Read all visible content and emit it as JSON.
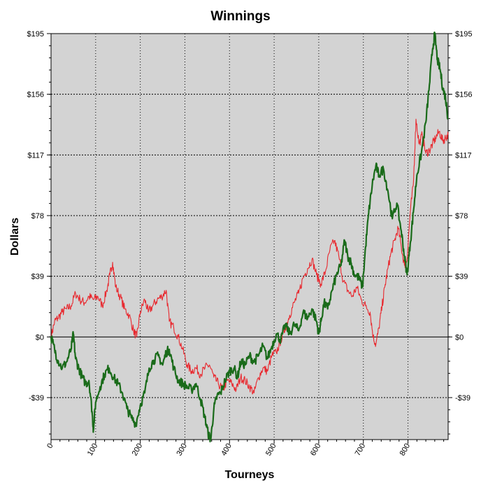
{
  "chart_data": {
    "type": "line",
    "title": "Winnings",
    "xlabel": "Tourneys",
    "ylabel": "Dollars",
    "xlim": [
      0,
      890
    ],
    "ylim": [
      -66,
      195
    ],
    "x_ticks": [
      0,
      100,
      200,
      300,
      400,
      500,
      600,
      700,
      800
    ],
    "x_tick_labels": [
      "0",
      "100",
      "200",
      "300",
      "400",
      "500",
      "600",
      "700",
      "800"
    ],
    "y_ticks": [
      -39,
      0,
      39,
      78,
      117,
      156,
      195
    ],
    "y_tick_labels": [
      "-$39",
      "$0",
      "$39",
      "$78",
      "$117",
      "$156",
      "$195"
    ],
    "grid": true,
    "legend": "none",
    "background_color": "#d3d3d3",
    "series": [
      {
        "color": "#1a6b1a",
        "points": [
          [
            0,
            0
          ],
          [
            8,
            -8
          ],
          [
            15,
            -15
          ],
          [
            25,
            -20
          ],
          [
            35,
            -16
          ],
          [
            45,
            -8
          ],
          [
            50,
            2
          ],
          [
            55,
            -14
          ],
          [
            62,
            -20
          ],
          [
            70,
            -26
          ],
          [
            78,
            -30
          ],
          [
            85,
            -28
          ],
          [
            92,
            -48
          ],
          [
            95,
            -60
          ],
          [
            100,
            -42
          ],
          [
            110,
            -32
          ],
          [
            120,
            -24
          ],
          [
            130,
            -20
          ],
          [
            140,
            -26
          ],
          [
            150,
            -30
          ],
          [
            160,
            -36
          ],
          [
            170,
            -46
          ],
          [
            180,
            -52
          ],
          [
            190,
            -56
          ],
          [
            200,
            -44
          ],
          [
            210,
            -36
          ],
          [
            220,
            -20
          ],
          [
            230,
            -15
          ],
          [
            240,
            -12
          ],
          [
            250,
            -18
          ],
          [
            258,
            -10
          ],
          [
            265,
            -8
          ],
          [
            275,
            -20
          ],
          [
            285,
            -28
          ],
          [
            295,
            -30
          ],
          [
            305,
            -32
          ],
          [
            315,
            -34
          ],
          [
            325,
            -30
          ],
          [
            335,
            -40
          ],
          [
            345,
            -52
          ],
          [
            352,
            -62
          ],
          [
            358,
            -66
          ],
          [
            365,
            -46
          ],
          [
            372,
            -38
          ],
          [
            380,
            -36
          ],
          [
            390,
            -28
          ],
          [
            400,
            -22
          ],
          [
            410,
            -20
          ],
          [
            418,
            -26
          ],
          [
            425,
            -16
          ],
          [
            435,
            -18
          ],
          [
            445,
            -12
          ],
          [
            455,
            -16
          ],
          [
            465,
            -12
          ],
          [
            475,
            -6
          ],
          [
            485,
            -14
          ],
          [
            495,
            -6
          ],
          [
            505,
            2
          ],
          [
            515,
            -2
          ],
          [
            525,
            8
          ],
          [
            535,
            2
          ],
          [
            545,
            8
          ],
          [
            555,
            4
          ],
          [
            565,
            16
          ],
          [
            575,
            12
          ],
          [
            585,
            18
          ],
          [
            595,
            10
          ],
          [
            600,
            2
          ],
          [
            605,
            10
          ],
          [
            612,
            22
          ],
          [
            620,
            18
          ],
          [
            630,
            30
          ],
          [
            640,
            40
          ],
          [
            650,
            46
          ],
          [
            658,
            62
          ],
          [
            665,
            52
          ],
          [
            672,
            48
          ],
          [
            680,
            40
          ],
          [
            690,
            38
          ],
          [
            698,
            32
          ],
          [
            705,
            58
          ],
          [
            712,
            80
          ],
          [
            720,
            98
          ],
          [
            728,
            110
          ],
          [
            735,
            104
          ],
          [
            745,
            108
          ],
          [
            755,
            94
          ],
          [
            765,
            76
          ],
          [
            775,
            86
          ],
          [
            785,
            68
          ],
          [
            792,
            52
          ],
          [
            798,
            40
          ],
          [
            805,
            60
          ],
          [
            812,
            80
          ],
          [
            820,
            104
          ],
          [
            830,
            118
          ],
          [
            840,
            138
          ],
          [
            848,
            162
          ],
          [
            855,
            185
          ],
          [
            860,
            195
          ],
          [
            866,
            178
          ],
          [
            872,
            172
          ],
          [
            878,
            160
          ],
          [
            884,
            154
          ],
          [
            890,
            140
          ]
        ]
      },
      {
        "color": "#e8282e",
        "points": [
          [
            0,
            0
          ],
          [
            8,
            10
          ],
          [
            15,
            12
          ],
          [
            25,
            16
          ],
          [
            35,
            18
          ],
          [
            45,
            20
          ],
          [
            55,
            28
          ],
          [
            65,
            24
          ],
          [
            75,
            22
          ],
          [
            85,
            26
          ],
          [
            95,
            24
          ],
          [
            105,
            26
          ],
          [
            115,
            20
          ],
          [
            125,
            30
          ],
          [
            132,
            40
          ],
          [
            138,
            48
          ],
          [
            145,
            32
          ],
          [
            155,
            26
          ],
          [
            165,
            18
          ],
          [
            175,
            14
          ],
          [
            185,
            4
          ],
          [
            192,
            0
          ],
          [
            200,
            16
          ],
          [
            210,
            24
          ],
          [
            218,
            16
          ],
          [
            228,
            20
          ],
          [
            238,
            24
          ],
          [
            248,
            26
          ],
          [
            258,
            30
          ],
          [
            265,
            10
          ],
          [
            275,
            6
          ],
          [
            285,
            0
          ],
          [
            295,
            -8
          ],
          [
            305,
            -18
          ],
          [
            315,
            -22
          ],
          [
            325,
            -20
          ],
          [
            335,
            -24
          ],
          [
            345,
            -20
          ],
          [
            355,
            -18
          ],
          [
            365,
            -26
          ],
          [
            375,
            -30
          ],
          [
            385,
            -34
          ],
          [
            395,
            -28
          ],
          [
            405,
            -30
          ],
          [
            415,
            -34
          ],
          [
            425,
            -26
          ],
          [
            435,
            -28
          ],
          [
            445,
            -32
          ],
          [
            455,
            -36
          ],
          [
            465,
            -26
          ],
          [
            475,
            -20
          ],
          [
            485,
            -22
          ],
          [
            495,
            -12
          ],
          [
            505,
            -10
          ],
          [
            515,
            -2
          ],
          [
            525,
            6
          ],
          [
            535,
            14
          ],
          [
            545,
            22
          ],
          [
            555,
            28
          ],
          [
            565,
            38
          ],
          [
            575,
            44
          ],
          [
            585,
            50
          ],
          [
            595,
            40
          ],
          [
            605,
            34
          ],
          [
            615,
            42
          ],
          [
            625,
            56
          ],
          [
            635,
            62
          ],
          [
            645,
            52
          ],
          [
            655,
            36
          ],
          [
            665,
            30
          ],
          [
            675,
            26
          ],
          [
            685,
            32
          ],
          [
            695,
            24
          ],
          [
            705,
            20
          ],
          [
            715,
            16
          ],
          [
            722,
            0
          ],
          [
            728,
            -5
          ],
          [
            735,
            6
          ],
          [
            742,
            20
          ],
          [
            748,
            32
          ],
          [
            755,
            44
          ],
          [
            762,
            54
          ],
          [
            770,
            62
          ],
          [
            778,
            70
          ],
          [
            785,
            58
          ],
          [
            792,
            46
          ],
          [
            798,
            50
          ],
          [
            805,
            80
          ],
          [
            812,
            98
          ],
          [
            818,
            140
          ],
          [
            825,
            124
          ],
          [
            832,
            130
          ],
          [
            840,
            118
          ],
          [
            848,
            120
          ],
          [
            855,
            124
          ],
          [
            862,
            128
          ],
          [
            870,
            132
          ],
          [
            878,
            126
          ],
          [
            884,
            128
          ],
          [
            890,
            130
          ]
        ]
      }
    ]
  }
}
